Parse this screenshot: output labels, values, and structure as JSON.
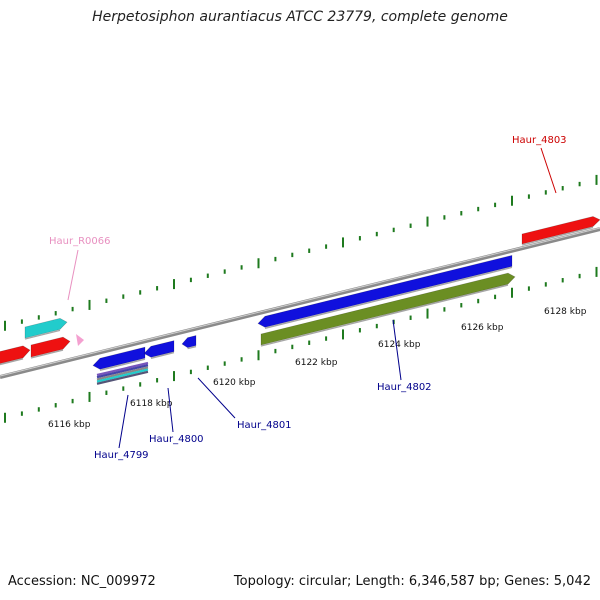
{
  "title": "Herpetosiphon aurantiacus ATCC 23779, complete genome",
  "accession_text": "Accession: NC_009972",
  "summary_text": "Topology: circular; Length: 6,346,587 bp; Genes: 5,042",
  "colors": {
    "backbone": "#8a8a8a",
    "tick": "#1e7a1e",
    "red_gene": "#ee1111",
    "blue_gene": "#1010dd",
    "cyan_gene": "#22cccc",
    "olive_gene": "#6b8e23",
    "pink_gene": "#f4a0d0",
    "red_label": "#cc0000",
    "blue_label": "#00008b",
    "pink_label": "#e890c0"
  },
  "ticks": [
    {
      "text": "6116 kbp"
    },
    {
      "text": "6118 kbp"
    },
    {
      "text": "6120 kbp"
    },
    {
      "text": "6122 kbp"
    },
    {
      "text": "6124 kbp"
    },
    {
      "text": "6126 kbp"
    },
    {
      "text": "6128 kbp"
    }
  ],
  "genes": [
    {
      "label": "Haur_4803",
      "color": "red_label"
    },
    {
      "label": "Haur_R0066",
      "color": "pink_label"
    },
    {
      "label": "Haur_4802",
      "color": "blue_label"
    },
    {
      "label": "Haur_4801",
      "color": "blue_label"
    },
    {
      "label": "Haur_4800",
      "color": "blue_label"
    },
    {
      "label": "Haur_4799",
      "color": "blue_label"
    }
  ]
}
